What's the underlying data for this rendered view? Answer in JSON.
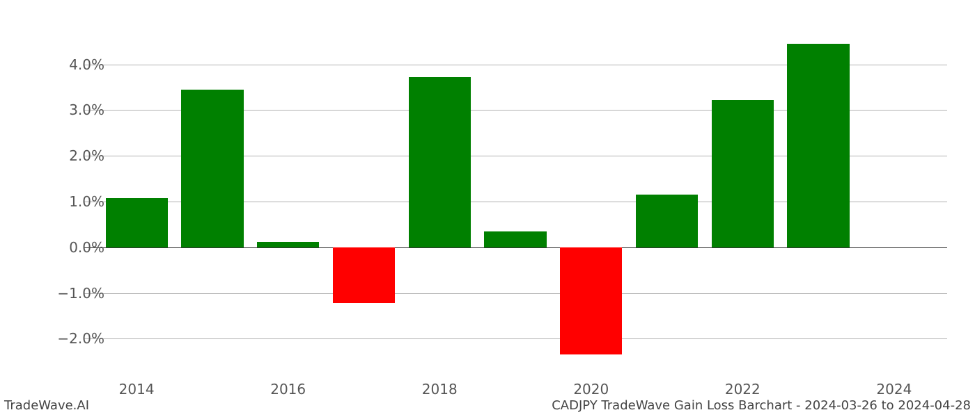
{
  "chart": {
    "type": "bar",
    "background_color": "#ffffff",
    "grid_color": "#b0b0b0",
    "zero_line_color": "#333333",
    "positive_color": "#008000",
    "negative_color": "#ff0000",
    "ylim": [
      -2.8,
      4.8
    ],
    "yticks": [
      -2.0,
      -1.0,
      0.0,
      1.0,
      2.0,
      3.0,
      4.0
    ],
    "ytick_labels": [
      "−2.0%",
      "−1.0%",
      "0.0%",
      "1.0%",
      "2.0%",
      "3.0%",
      "4.0%"
    ],
    "xticks": [
      2014,
      2016,
      2018,
      2020,
      2022,
      2024
    ],
    "xtick_labels": [
      "2014",
      "2016",
      "2018",
      "2020",
      "2022",
      "2024"
    ],
    "xlim": [
      2013.3,
      2024.7
    ],
    "years": [
      2014,
      2015,
      2016,
      2017,
      2018,
      2019,
      2020,
      2021,
      2022,
      2023,
      2024
    ],
    "values": [
      1.08,
      3.45,
      0.12,
      -1.22,
      3.72,
      0.35,
      -2.35,
      1.15,
      3.22,
      4.45,
      0.0
    ],
    "bar_width": 0.82,
    "tick_fontsize": 20,
    "tick_color": "#555555",
    "footer_fontsize": 18,
    "footer_color": "#444444"
  },
  "footer": {
    "left": "TradeWave.AI",
    "right": "CADJPY TradeWave Gain Loss Barchart - 2024-03-26 to 2024-04-28"
  }
}
